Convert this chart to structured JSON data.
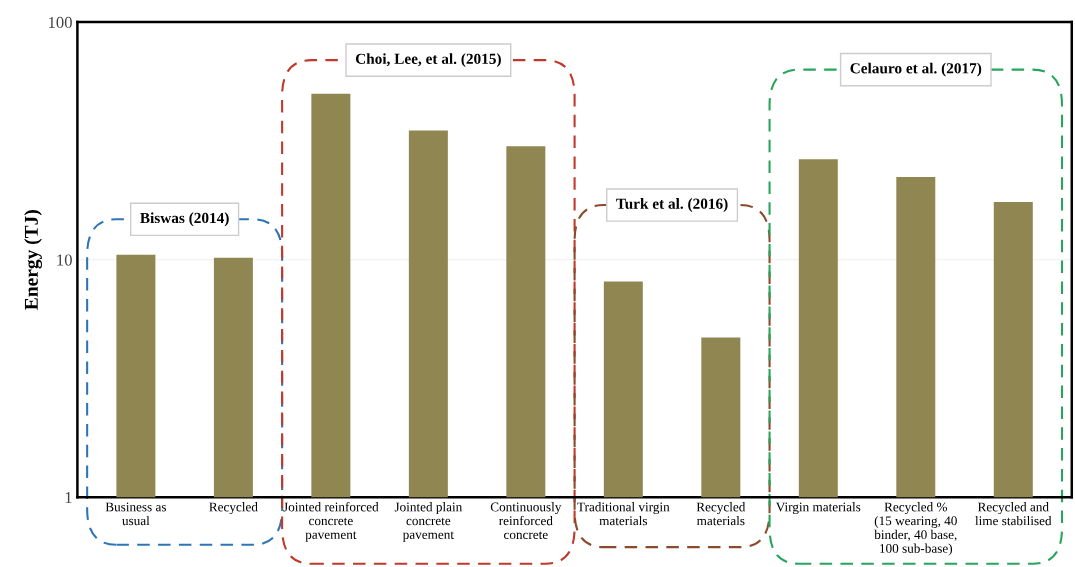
{
  "chart_data": {
    "type": "bar",
    "ylabel": "Energy (TJ)",
    "log": true,
    "categories": [
      "Business as\nusual",
      "Recycled",
      "Jointed reinforced\nconcrete\npavement",
      "Jointed plain\nconcrete\npavement",
      "Continuously\nreinforced\nconcrete",
      "Traditional virgin\nmaterials",
      "Recycled\nmaterials",
      "Virgin materials",
      "Recycled %\n(15 wearing, 40\nbinder, 40 base,\n100 sub-base)",
      "Recycled and\nlime stabilised"
    ],
    "values": [
      10.5,
      10.2,
      50,
      35,
      30,
      8.1,
      4.7,
      26.5,
      22.3,
      17.5
    ],
    "color": "#908652",
    "ylim": [
      1,
      100
    ],
    "yticks": [
      1,
      10,
      100
    ],
    "grid": "y",
    "annotations": [
      "Biswas (2014)",
      "Choi, Lee, et al. (2015)",
      "Turk et al. (2016)",
      "Celauro et al. (2017)"
    ]
  }
}
